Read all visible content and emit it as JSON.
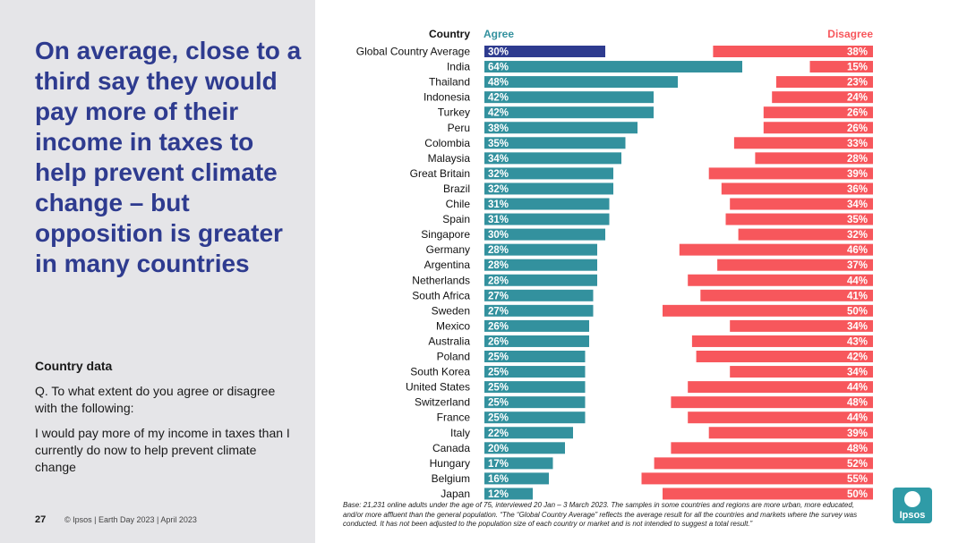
{
  "slide": {
    "headline": "On average, close to a third say they would pay more of their income in taxes to help prevent climate change – but opposition is greater in many countries",
    "sub_label": "Country data",
    "question": "Q. To what extent do you agree or disagree with the following:",
    "statement": "I would pay more of my income in taxes than I currently do now to help prevent climate change",
    "page_number": "27",
    "footer": "© Ipsos | Earth Day 2023 | April 2023",
    "note": "Base: 21,231 online adults under the age of 75, interviewed 20 Jan – 3 March 2023. The samples in some countries and regions are more urban, more educated, and/or more affluent than the general population. “The “Global Country Average” reflects the average result for all the countries and markets where the survey was conducted. It has not been adjusted to the population size of each country or market and is not intended to suggest a total result.”",
    "logo_text": "Ipsos"
  },
  "colors": {
    "agree": "#33919e",
    "agree_highlight": "#2e3b8f",
    "disagree": "#f7575c",
    "headline": "#2e3b8f"
  },
  "chart_data": {
    "type": "bar",
    "headers": {
      "country": "Country",
      "agree": "Agree",
      "disagree": "Disagree"
    },
    "categories": [
      "Global Country Average",
      "India",
      "Thailand",
      "Indonesia",
      "Turkey",
      "Peru",
      "Colombia",
      "Malaysia",
      "Great Britain",
      "Brazil",
      "Chile",
      "Spain",
      "Singapore",
      "Germany",
      "Argentina",
      "Netherlands",
      "South Africa",
      "Sweden",
      "Mexico",
      "Australia",
      "Poland",
      "South Korea",
      "United States",
      "Switzerland",
      "France",
      "Italy",
      "Canada",
      "Hungary",
      "Belgium",
      "Japan"
    ],
    "series": [
      {
        "name": "Agree",
        "values": [
          30,
          64,
          48,
          42,
          42,
          38,
          35,
          34,
          32,
          32,
          31,
          31,
          30,
          28,
          28,
          28,
          27,
          27,
          26,
          26,
          25,
          25,
          25,
          25,
          25,
          22,
          20,
          17,
          16,
          12
        ]
      },
      {
        "name": "Disagree",
        "values": [
          38,
          15,
          23,
          24,
          26,
          26,
          33,
          28,
          39,
          36,
          34,
          35,
          32,
          46,
          37,
          44,
          41,
          50,
          34,
          43,
          42,
          34,
          44,
          48,
          44,
          39,
          48,
          52,
          55,
          50
        ]
      }
    ],
    "unit": "%",
    "highlight_index": 0
  }
}
